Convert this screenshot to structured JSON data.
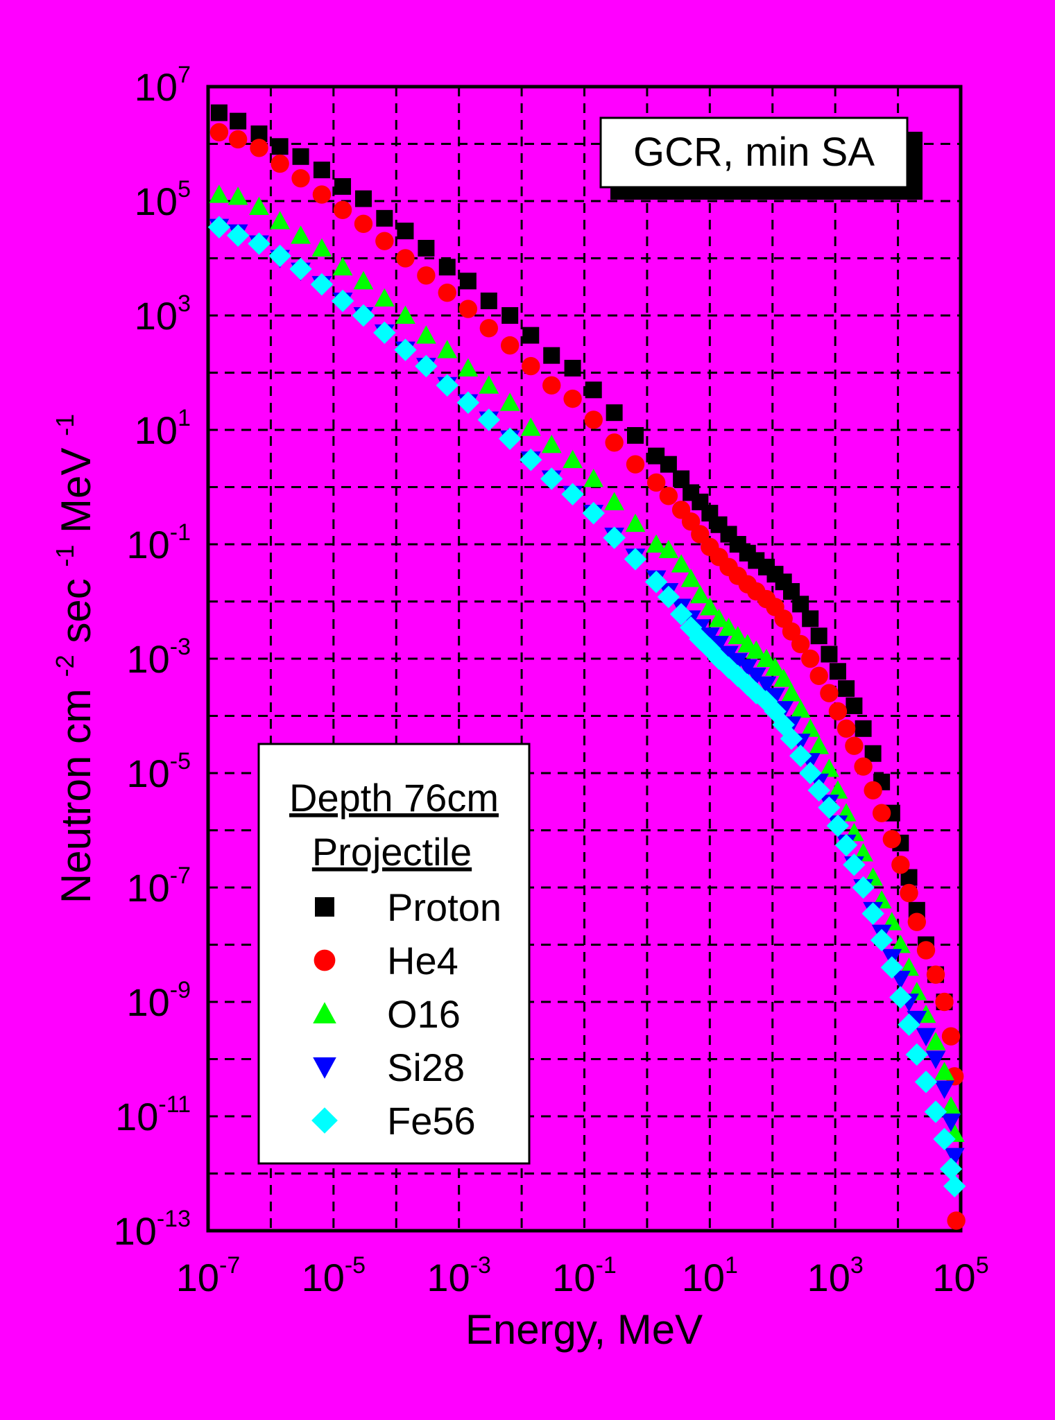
{
  "chart_data": {
    "type": "scatter",
    "title": "GCR, min SA",
    "xlabel": "Energy, MeV",
    "ylabel_parts": [
      "Neutron cm",
      "-2",
      " sec",
      "-1",
      " MeV",
      "-1"
    ],
    "x_scale": "log",
    "y_scale": "log",
    "xlim": [
      1e-07,
      100000.0
    ],
    "ylim": [
      1e-13,
      10000000.0
    ],
    "grid": true,
    "x_ticks": [
      {
        "base": "10",
        "exp": "-7",
        "value": 1e-07
      },
      {
        "base": "10",
        "exp": "-5",
        "value": 1e-05
      },
      {
        "base": "10",
        "exp": "-3",
        "value": 0.001
      },
      {
        "base": "10",
        "exp": "-1",
        "value": 0.1
      },
      {
        "base": "10",
        "exp": "1",
        "value": 10.0
      },
      {
        "base": "10",
        "exp": "3",
        "value": 1000.0
      },
      {
        "base": "10",
        "exp": "5",
        "value": 100000.0
      }
    ],
    "y_ticks": [
      {
        "base": "10",
        "exp": "7",
        "value": 10000000.0
      },
      {
        "base": "10",
        "exp": "5",
        "value": 100000.0
      },
      {
        "base": "10",
        "exp": "3",
        "value": 1000.0
      },
      {
        "base": "10",
        "exp": "1",
        "value": 10.0
      },
      {
        "base": "10",
        "exp": "-1",
        "value": 0.1
      },
      {
        "base": "10",
        "exp": "-3",
        "value": 0.001
      },
      {
        "base": "10",
        "exp": "-5",
        "value": 1e-05
      },
      {
        "base": "10",
        "exp": "-7",
        "value": 1e-07
      },
      {
        "base": "10",
        "exp": "-9",
        "value": 1e-09
      },
      {
        "base": "10",
        "exp": "-11",
        "value": 1e-11
      },
      {
        "base": "10",
        "exp": "-13",
        "value": 1e-13
      }
    ],
    "legend": {
      "position": "bottom-left",
      "header": [
        "Depth 76cm",
        "Projectile"
      ]
    },
    "series": [
      {
        "name": "Proton",
        "marker": "square",
        "color": "#000000",
        "points": [
          [
            1.5e-07,
            3500000.0
          ],
          [
            3e-07,
            2500000.0
          ],
          [
            6.5e-07,
            1500000.0
          ],
          [
            1.4e-06,
            900000.0
          ],
          [
            3e-06,
            600000.0
          ],
          [
            6.5e-06,
            350000.0
          ],
          [
            1.4e-05,
            180000.0
          ],
          [
            3e-05,
            110000.0
          ],
          [
            6.5e-05,
            50000.0
          ],
          [
            0.00014,
            30000.0
          ],
          [
            0.0003,
            15000.0
          ],
          [
            0.00065,
            7000.0
          ],
          [
            0.0014,
            4000.0
          ],
          [
            0.003,
            1800.0
          ],
          [
            0.0065,
            1000.0
          ],
          [
            0.014,
            450.0
          ],
          [
            0.03,
            200.0
          ],
          [
            0.065,
            120.0
          ],
          [
            0.14,
            50.0
          ],
          [
            0.3,
            20.0
          ],
          [
            0.65,
            8
          ],
          [
            1.4,
            3.5
          ],
          [
            2.2,
            2.5
          ],
          [
            3.5,
            1.4
          ],
          [
            5,
            0.8
          ],
          [
            7,
            0.55
          ],
          [
            10,
            0.35
          ],
          [
            14,
            0.22
          ],
          [
            20,
            0.15
          ],
          [
            28,
            0.1
          ],
          [
            40,
            0.07
          ],
          [
            55,
            0.052
          ],
          [
            80,
            0.04
          ],
          [
            110,
            0.03
          ],
          [
            150,
            0.022
          ],
          [
            200,
            0.015
          ],
          [
            280,
            0.009
          ],
          [
            400,
            0.005
          ],
          [
            550,
            0.0025
          ],
          [
            800,
            0.0012
          ],
          [
            1100,
            0.0006
          ],
          [
            1500,
            0.0003
          ],
          [
            2000,
            0.00015
          ],
          [
            2800,
            6e-05
          ],
          [
            4000,
            2.2e-05
          ],
          [
            5500,
            7e-06
          ],
          [
            8000,
            2e-06
          ],
          [
            11000,
            6e-07
          ],
          [
            15000,
            1.5e-07
          ],
          [
            20000,
            4e-08
          ],
          [
            28000,
            1e-08
          ],
          [
            40000,
            3e-09
          ],
          [
            55000,
            1e-09
          ]
        ]
      },
      {
        "name": "He4",
        "marker": "circle",
        "color": "#ff0000",
        "points": [
          [
            1.5e-07,
            1600000.0
          ],
          [
            3e-07,
            1200000.0
          ],
          [
            6.5e-07,
            850000.0
          ],
          [
            1.4e-06,
            450000.0
          ],
          [
            3e-06,
            250000.0
          ],
          [
            6.5e-06,
            130000.0
          ],
          [
            1.4e-05,
            70000.0
          ],
          [
            3e-05,
            40000.0
          ],
          [
            6.5e-05,
            20000.0
          ],
          [
            0.00014,
            10000.0
          ],
          [
            0.0003,
            5000.0
          ],
          [
            0.00065,
            2500.0
          ],
          [
            0.0014,
            1300.0
          ],
          [
            0.003,
            600.0
          ],
          [
            0.0065,
            300.0
          ],
          [
            0.014,
            130.0
          ],
          [
            0.03,
            60.0
          ],
          [
            0.065,
            35.0
          ],
          [
            0.14,
            15.0
          ],
          [
            0.3,
            6
          ],
          [
            0.65,
            2.5
          ],
          [
            1.4,
            1.2
          ],
          [
            2.2,
            0.7
          ],
          [
            3.5,
            0.4
          ],
          [
            5,
            0.25
          ],
          [
            7,
            0.15
          ],
          [
            10,
            0.09
          ],
          [
            14,
            0.06
          ],
          [
            20,
            0.04
          ],
          [
            28,
            0.028
          ],
          [
            40,
            0.02
          ],
          [
            55,
            0.015
          ],
          [
            80,
            0.011
          ],
          [
            110,
            0.008
          ],
          [
            150,
            0.005
          ],
          [
            200,
            0.003
          ],
          [
            280,
            0.0018
          ],
          [
            400,
            0.001
          ],
          [
            550,
            0.0005
          ],
          [
            800,
            0.00025
          ],
          [
            1100,
            0.00012
          ],
          [
            1500,
            6e-05
          ],
          [
            2000,
            3e-05
          ],
          [
            2800,
            1.3e-05
          ],
          [
            4000,
            5e-06
          ],
          [
            5500,
            2e-06
          ],
          [
            8000,
            7e-07
          ],
          [
            11000,
            2.5e-07
          ],
          [
            15000,
            8e-08
          ],
          [
            20000,
            2.5e-08
          ],
          [
            28000,
            8e-09
          ],
          [
            40000,
            3e-09
          ],
          [
            55000,
            1e-09
          ],
          [
            70000,
            2.5e-10
          ],
          [
            80000,
            5e-11
          ],
          [
            85000,
            1.5e-13
          ]
        ]
      },
      {
        "name": "O16",
        "marker": "triangle-up",
        "color": "#00ff00",
        "points": [
          [
            1.5e-07,
            130000.0
          ],
          [
            3e-07,
            120000.0
          ],
          [
            6.5e-07,
            80000.0
          ],
          [
            1.4e-06,
            45000.0
          ],
          [
            3e-06,
            25000.0
          ],
          [
            6.5e-06,
            15000.0
          ],
          [
            1.4e-05,
            7000.0
          ],
          [
            3e-05,
            4000.0
          ],
          [
            6.5e-05,
            2000.0
          ],
          [
            0.00014,
            1000.0
          ],
          [
            0.0003,
            450.0
          ],
          [
            0.00065,
            250.0
          ],
          [
            0.0014,
            120.0
          ],
          [
            0.003,
            60.0
          ],
          [
            0.0065,
            30.0
          ],
          [
            0.014,
            11.0
          ],
          [
            0.03,
            5.5
          ],
          [
            0.065,
            3
          ],
          [
            0.14,
            1.4
          ],
          [
            0.3,
            0.55
          ],
          [
            0.65,
            0.23
          ],
          [
            1.4,
            0.1
          ],
          [
            2.2,
            0.08
          ],
          [
            3.5,
            0.045
          ],
          [
            5,
            0.025
          ],
          [
            7,
            0.013
          ],
          [
            10,
            0.008
          ],
          [
            14,
            0.005
          ],
          [
            20,
            0.0035
          ],
          [
            28,
            0.0025
          ],
          [
            40,
            0.0018
          ],
          [
            55,
            0.0014
          ],
          [
            80,
            0.001
          ],
          [
            110,
            0.0007
          ],
          [
            150,
            0.00045
          ],
          [
            200,
            0.00025
          ],
          [
            280,
            0.00013
          ],
          [
            400,
            6e-05
          ],
          [
            550,
            3e-05
          ],
          [
            800,
            1.2e-05
          ],
          [
            1100,
            5e-06
          ],
          [
            1500,
            2e-06
          ],
          [
            2000,
            9e-07
          ],
          [
            2800,
            4e-07
          ],
          [
            4000,
            1.5e-07
          ],
          [
            5500,
            6e-08
          ],
          [
            8000,
            2.5e-08
          ],
          [
            11000,
            1e-08
          ],
          [
            15000,
            4e-09
          ],
          [
            20000,
            1.5e-09
          ],
          [
            28000,
            6e-10
          ],
          [
            40000,
            2e-10
          ],
          [
            55000,
            6e-11
          ],
          [
            70000,
            1.5e-11
          ],
          [
            80000,
            5e-12
          ]
        ]
      },
      {
        "name": "Si28",
        "marker": "triangle-down",
        "color": "#0000ff",
        "points": [
          [
            1.5e-07,
            35000.0
          ],
          [
            3e-07,
            28000.0
          ],
          [
            6.5e-07,
            18000.0
          ],
          [
            1.4e-06,
            10000.0
          ],
          [
            3e-06,
            6000.0
          ],
          [
            6.5e-06,
            3500.0
          ],
          [
            1.4e-05,
            1800.0
          ],
          [
            3e-05,
            1000.0
          ],
          [
            6.5e-05,
            500.0
          ],
          [
            0.00014,
            250.0
          ],
          [
            0.0003,
            130.0
          ],
          [
            0.00065,
            60.0
          ],
          [
            0.0014,
            30.0
          ],
          [
            0.003,
            15.0
          ],
          [
            0.0065,
            7
          ],
          [
            0.014,
            3
          ],
          [
            0.03,
            1.4
          ],
          [
            0.065,
            0.75
          ],
          [
            0.14,
            0.35
          ],
          [
            0.3,
            0.14
          ],
          [
            0.65,
            0.06
          ],
          [
            1.4,
            0.025
          ],
          [
            2.2,
            0.015
          ],
          [
            3.5,
            0.008
          ],
          [
            5,
            0.005
          ],
          [
            7,
            0.0035
          ],
          [
            10,
            0.0025
          ],
          [
            14,
            0.0018
          ],
          [
            20,
            0.0012
          ],
          [
            28,
            0.0009
          ],
          [
            40,
            0.0007
          ],
          [
            55,
            0.0005
          ],
          [
            80,
            0.00035
          ],
          [
            110,
            0.00022
          ],
          [
            150,
            0.00013
          ],
          [
            200,
            7e-05
          ],
          [
            280,
            3.5e-05
          ],
          [
            400,
            1.6e-05
          ],
          [
            550,
            7e-06
          ],
          [
            800,
            3e-06
          ],
          [
            1100,
            1.3e-06
          ],
          [
            1500,
            6e-07
          ],
          [
            2000,
            2.5e-07
          ],
          [
            2800,
            1e-07
          ],
          [
            4000,
            4e-08
          ],
          [
            5500,
            1.6e-08
          ],
          [
            8000,
            6e-09
          ],
          [
            11000,
            2.5e-09
          ],
          [
            15000,
            1e-09
          ],
          [
            20000,
            5e-10
          ],
          [
            28000,
            2.5e-10
          ],
          [
            40000,
            1e-10
          ],
          [
            55000,
            3e-11
          ],
          [
            70000,
            8e-12
          ],
          [
            80000,
            2e-12
          ]
        ]
      },
      {
        "name": "Fe56",
        "marker": "diamond",
        "color": "#00ffff",
        "points": [
          [
            1.5e-07,
            35000.0
          ],
          [
            3e-07,
            25000.0
          ],
          [
            6.5e-07,
            18000.0
          ],
          [
            1.4e-06,
            11000.0
          ],
          [
            3e-06,
            6500.0
          ],
          [
            6.5e-06,
            3500.0
          ],
          [
            1.4e-05,
            1800.0
          ],
          [
            3e-05,
            1000.0
          ],
          [
            6.5e-05,
            500.0
          ],
          [
            0.00014,
            250.0
          ],
          [
            0.0003,
            130.0
          ],
          [
            0.00065,
            60.0
          ],
          [
            0.0014,
            30.0
          ],
          [
            0.003,
            15.0
          ],
          [
            0.0065,
            7
          ],
          [
            0.014,
            3
          ],
          [
            0.03,
            1.4
          ],
          [
            0.065,
            0.75
          ],
          [
            0.14,
            0.35
          ],
          [
            0.3,
            0.13
          ],
          [
            0.65,
            0.055
          ],
          [
            1.4,
            0.022
          ],
          [
            2.2,
            0.012
          ],
          [
            3.5,
            0.006
          ],
          [
            5,
            0.0035
          ],
          [
            7,
            0.0022
          ],
          [
            10,
            0.0015
          ],
          [
            14,
            0.001
          ],
          [
            20,
            0.0007
          ],
          [
            28,
            0.0005
          ],
          [
            40,
            0.00035
          ],
          [
            55,
            0.00025
          ],
          [
            80,
            0.00018
          ],
          [
            110,
            0.00012
          ],
          [
            150,
            7e-05
          ],
          [
            200,
            4e-05
          ],
          [
            280,
            2e-05
          ],
          [
            400,
            1e-05
          ],
          [
            550,
            5e-06
          ],
          [
            800,
            2.5e-06
          ],
          [
            1100,
            1.2e-06
          ],
          [
            1500,
            5.5e-07
          ],
          [
            2000,
            2.5e-07
          ],
          [
            2800,
            1e-07
          ],
          [
            4000,
            3.5e-08
          ],
          [
            5500,
            1.2e-08
          ],
          [
            8000,
            4e-09
          ],
          [
            11000,
            1.2e-09
          ],
          [
            15000,
            4e-10
          ],
          [
            20000,
            1.2e-10
          ],
          [
            28000,
            4e-11
          ],
          [
            40000,
            1.2e-11
          ],
          [
            55000,
            4e-12
          ],
          [
            70000,
            1.2e-12
          ],
          [
            80000,
            6e-13
          ]
        ]
      }
    ]
  }
}
